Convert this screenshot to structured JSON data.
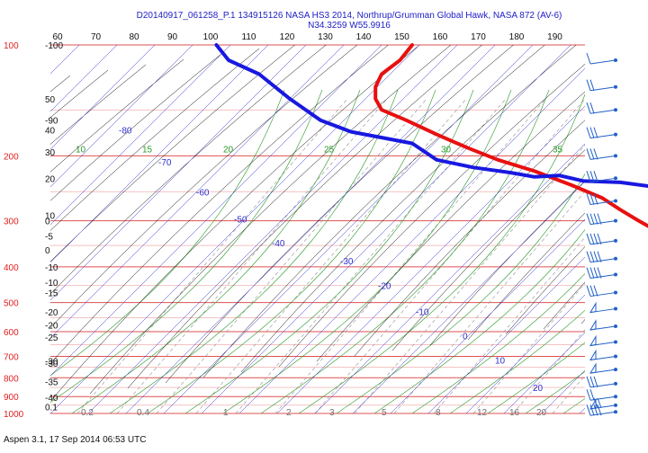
{
  "title_line1": "D20140917_061258_P.1 134915126 NASA HS3 2014, Northrup/Grumman Global Hawk, NASA 872 (AV-6)",
  "title_line2": "N34.3259 W55.9916",
  "footer": "Aspen 3.1, 17 Sep 2014  06:53 UTC",
  "colors": {
    "temperature": "#e81010",
    "dewpoint": "#1818e0",
    "isobar": "#e05050",
    "isotherm": "#3030d0",
    "dry_adiabat": "#000000",
    "moist_adiabat": "#2a9a2a",
    "mixing_ratio": "#909090",
    "wind_barb": "#2060c8"
  },
  "chart_data": {
    "type": "skew-t",
    "x_ticks": [
      "60",
      "70",
      "80",
      "90",
      "100",
      "110",
      "120",
      "130",
      "140",
      "150",
      "160",
      "170",
      "180",
      "190"
    ],
    "pressure_ticks": [
      {
        "p": 100,
        "label": "100"
      },
      {
        "p": 200,
        "label": "200"
      },
      {
        "p": 300,
        "label": "300"
      },
      {
        "p": 400,
        "label": "400"
      },
      {
        "p": 500,
        "label": "500"
      },
      {
        "p": 600,
        "label": "600"
      },
      {
        "p": 700,
        "label": "700"
      },
      {
        "p": 800,
        "label": "800"
      },
      {
        "p": 900,
        "label": "900"
      },
      {
        "p": 1000,
        "label": "1000"
      }
    ],
    "isobars": [
      100,
      150,
      200,
      250,
      300,
      350,
      400,
      450,
      500,
      550,
      600,
      650,
      700,
      750,
      800,
      850,
      900,
      950,
      1000
    ],
    "height_labels": [
      {
        "p": 100,
        "label": "-100"
      },
      {
        "p": 140,
        "label": "50"
      },
      {
        "p": 160,
        "label": "-90"
      },
      {
        "p": 170,
        "label": "40"
      },
      {
        "p": 195,
        "label": "30"
      },
      {
        "p": 230,
        "label": "20"
      },
      {
        "p": 290,
        "label": "10"
      },
      {
        "p": 300,
        "label": "0"
      },
      {
        "p": 330,
        "label": "-5"
      },
      {
        "p": 360,
        "label": "0"
      },
      {
        "p": 400,
        "label": "-10"
      },
      {
        "p": 440,
        "label": "-10"
      },
      {
        "p": 470,
        "label": "-15"
      },
      {
        "p": 530,
        "label": "-20"
      },
      {
        "p": 575,
        "label": "-20"
      },
      {
        "p": 620,
        "label": "-25"
      },
      {
        "p": 720,
        "label": "-30"
      },
      {
        "p": 730,
        "label": "-30"
      },
      {
        "p": 820,
        "label": "-35"
      },
      {
        "p": 905,
        "label": "-40"
      },
      {
        "p": 960,
        "label": "0.1"
      }
    ],
    "isotherm_labels": [
      {
        "label": "-80",
        "x": 132,
        "p": 174
      },
      {
        "label": "-70",
        "x": 176,
        "p": 212
      },
      {
        "label": "-60",
        "x": 218,
        "p": 256
      },
      {
        "label": "-50",
        "x": 260,
        "p": 303
      },
      {
        "label": "-40",
        "x": 302,
        "p": 352
      },
      {
        "label": "-30",
        "x": 378,
        "p": 394
      },
      {
        "label": "-20",
        "x": 420,
        "p": 460
      },
      {
        "label": "-10",
        "x": 462,
        "p": 540
      },
      {
        "label": "0",
        "x": 514,
        "p": 630
      },
      {
        "label": "10",
        "x": 550,
        "p": 732
      },
      {
        "label": "20",
        "x": 592,
        "p": 870
      }
    ],
    "adiabat_labels": [
      {
        "label": "10",
        "x": 84,
        "p": 200
      },
      {
        "label": "15",
        "x": 158,
        "p": 200
      },
      {
        "label": "20",
        "x": 248,
        "p": 200
      },
      {
        "label": "25",
        "x": 360,
        "p": 200
      },
      {
        "label": "30",
        "x": 490,
        "p": 200
      },
      {
        "label": "35",
        "x": 614,
        "p": 200
      }
    ],
    "mixing_ratio_labels": [
      {
        "label": "0.2",
        "x": 90
      },
      {
        "label": "0.4",
        "x": 152
      },
      {
        "label": "1",
        "x": 248
      },
      {
        "label": "2",
        "x": 318
      },
      {
        "label": "3",
        "x": 366
      },
      {
        "label": "5",
        "x": 424
      },
      {
        "label": "8",
        "x": 484
      },
      {
        "label": "12",
        "x": 530
      },
      {
        "label": "16",
        "x": 566
      },
      {
        "label": "20",
        "x": 596
      }
    ],
    "series": [
      {
        "key": "temperature",
        "points": [
          [
            120,
            100
          ],
          [
            116,
            110
          ],
          [
            110,
            120
          ],
          [
            108,
            130
          ],
          [
            108,
            140
          ],
          [
            110,
            150
          ],
          [
            118,
            160
          ],
          [
            128,
            175
          ],
          [
            138,
            190
          ],
          [
            148,
            205
          ],
          [
            160,
            220
          ],
          [
            172,
            240
          ],
          [
            182,
            260
          ],
          [
            188,
            280
          ],
          [
            194,
            300
          ],
          [
            200,
            320
          ],
          [
            206,
            340
          ],
          [
            214,
            365
          ],
          [
            222,
            395
          ],
          [
            230,
            420
          ],
          [
            236,
            445
          ],
          [
            238,
            470
          ],
          [
            244,
            495
          ],
          [
            254,
            515
          ],
          [
            270,
            550
          ],
          [
            286,
            575
          ],
          [
            296,
            595
          ],
          [
            292,
            620
          ],
          [
            298,
            650
          ],
          [
            304,
            680
          ],
          [
            310,
            710
          ],
          [
            316,
            735
          ]
        ]
      },
      {
        "key": "dewpoint",
        "points": [
          [
            56,
            100
          ],
          [
            60,
            110
          ],
          [
            70,
            120
          ],
          [
            80,
            140
          ],
          [
            90,
            160
          ],
          [
            100,
            172
          ],
          [
            120,
            185
          ],
          [
            128,
            205
          ],
          [
            140,
            215
          ],
          [
            152,
            222
          ],
          [
            160,
            228
          ],
          [
            168,
            226
          ],
          [
            176,
            234
          ],
          [
            188,
            236
          ],
          [
            198,
            242
          ],
          [
            210,
            247
          ],
          [
            218,
            252
          ],
          [
            220,
            262
          ],
          [
            218,
            272
          ],
          [
            228,
            282
          ],
          [
            240,
            292
          ],
          [
            254,
            305
          ],
          [
            268,
            318
          ],
          [
            276,
            332
          ],
          [
            284,
            346
          ],
          [
            294,
            360
          ],
          [
            306,
            380
          ],
          [
            316,
            395
          ],
          [
            322,
            412
          ],
          [
            326,
            430
          ],
          [
            334,
            448
          ],
          [
            340,
            462
          ],
          [
            346,
            478
          ],
          [
            350,
            496
          ],
          [
            348,
            516
          ],
          [
            350,
            532
          ],
          [
            356,
            552
          ],
          [
            352,
            568
          ],
          [
            358,
            588
          ],
          [
            364,
            606
          ],
          [
            374,
            624
          ],
          [
            382,
            642
          ],
          [
            390,
            662
          ],
          [
            400,
            690
          ],
          [
            408,
            720
          ],
          [
            416,
            750
          ],
          [
            420,
            780
          ],
          [
            426,
            810
          ],
          [
            432,
            840
          ],
          [
            436,
            870
          ],
          [
            442,
            900
          ],
          [
            446,
            925
          ],
          [
            450,
            950
          ],
          [
            456,
            975
          ],
          [
            460,
            990
          ]
        ]
      }
    ],
    "wind_barbs": [
      {
        "p": 110,
        "flags": 0,
        "barbs": 1
      },
      {
        "p": 130,
        "flags": 0,
        "barbs": 2
      },
      {
        "p": 150,
        "flags": 0,
        "barbs": 2
      },
      {
        "p": 175,
        "flags": 0,
        "barbs": 3
      },
      {
        "p": 200,
        "flags": 0,
        "barbs": 3
      },
      {
        "p": 230,
        "flags": 0,
        "barbs": 3
      },
      {
        "p": 265,
        "flags": 0,
        "barbs": 3
      },
      {
        "p": 300,
        "flags": 0,
        "barbs": 4
      },
      {
        "p": 340,
        "flags": 0,
        "barbs": 4
      },
      {
        "p": 380,
        "flags": 0,
        "barbs": 4
      },
      {
        "p": 420,
        "flags": 0,
        "barbs": 4
      },
      {
        "p": 470,
        "flags": 0,
        "barbs": 3
      },
      {
        "p": 520,
        "flags": 1,
        "barbs": 0
      },
      {
        "p": 580,
        "flags": 1,
        "barbs": 0
      },
      {
        "p": 640,
        "flags": 1,
        "barbs": 0
      },
      {
        "p": 700,
        "flags": 1,
        "barbs": 0
      },
      {
        "p": 760,
        "flags": 1,
        "barbs": 0
      },
      {
        "p": 830,
        "flags": 0,
        "barbs": 3
      },
      {
        "p": 900,
        "flags": 0,
        "barbs": 2
      },
      {
        "p": 950,
        "flags": 1,
        "barbs": 2
      },
      {
        "p": 990,
        "flags": 0,
        "barbs": 4
      }
    ]
  }
}
